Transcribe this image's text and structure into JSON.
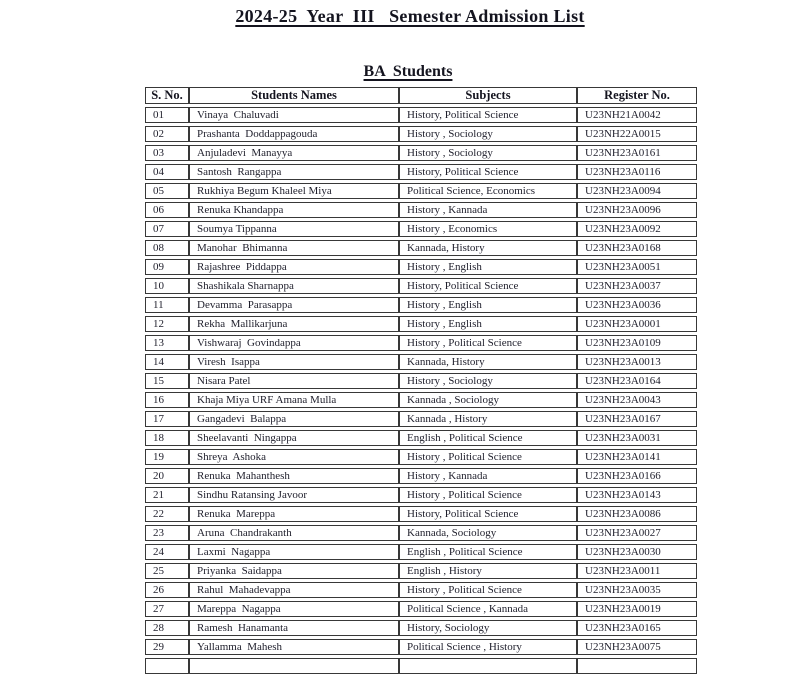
{
  "page": {
    "title": "2024-25  Year  III   Semester Admission List",
    "section_heading": "BA  Students"
  },
  "table": {
    "headers": [
      "S. No.",
      "Students Names",
      "Subjects",
      "Register No."
    ],
    "rows": [
      {
        "sno": "01",
        "name": "Vinaya  Chaluvadi",
        "subjects": "History, Political Science",
        "register": "U23NH21A0042"
      },
      {
        "sno": "02",
        "name": "Prashanta  Doddappagouda",
        "subjects": "History , Sociology",
        "register": "U23NH22A0015"
      },
      {
        "sno": "03",
        "name": "Anjuladevi  Manayya",
        "subjects": "History , Sociology",
        "register": "U23NH23A0161"
      },
      {
        "sno": "04",
        "name": "Santosh  Rangappa",
        "subjects": "History, Political Science",
        "register": "U23NH23A0116"
      },
      {
        "sno": "05",
        "name": "Rukhiya Begum Khaleel Miya",
        "subjects": "Political Science, Economics",
        "register": "U23NH23A0094"
      },
      {
        "sno": "06",
        "name": "Renuka Khandappa",
        "subjects": "History , Kannada",
        "register": "U23NH23A0096"
      },
      {
        "sno": "07",
        "name": "Soumya Tippanna",
        "subjects": "History , Economics",
        "register": "U23NH23A0092"
      },
      {
        "sno": "08",
        "name": "Manohar  Bhimanna",
        "subjects": "Kannada, History",
        "register": "U23NH23A0168"
      },
      {
        "sno": "09",
        "name": "Rajashree  Piddappa",
        "subjects": "History , English",
        "register": "U23NH23A0051"
      },
      {
        "sno": "10",
        "name": "Shashikala Sharnappa",
        "subjects": "History, Political Science",
        "register": "U23NH23A0037"
      },
      {
        "sno": "11",
        "name": "Devamma  Parasappa",
        "subjects": "History , English",
        "register": "U23NH23A0036"
      },
      {
        "sno": "12",
        "name": "Rekha  Mallikarjuna",
        "subjects": "History , English",
        "register": "U23NH23A0001"
      },
      {
        "sno": "13",
        "name": "Vishwaraj  Govindappa",
        "subjects": "History , Political Science",
        "register": "U23NH23A0109"
      },
      {
        "sno": "14",
        "name": "Viresh  Isappa",
        "subjects": "Kannada, History",
        "register": "U23NH23A0013"
      },
      {
        "sno": "15",
        "name": "Nisara Patel",
        "subjects": "History , Sociology",
        "register": "U23NH23A0164"
      },
      {
        "sno": "16",
        "name": "Khaja Miya URF Amana Mulla",
        "subjects": "Kannada , Sociology",
        "register": "U23NH23A0043"
      },
      {
        "sno": "17",
        "name": "Gangadevi  Balappa",
        "subjects": "Kannada , History",
        "register": "U23NH23A0167"
      },
      {
        "sno": "18",
        "name": "Sheelavanti  Ningappa",
        "subjects": "English , Political Science",
        "register": "U23NH23A0031"
      },
      {
        "sno": "19",
        "name": "Shreya  Ashoka",
        "subjects": "History , Political Science",
        "register": "U23NH23A0141"
      },
      {
        "sno": "20",
        "name": "Renuka  Mahanthesh",
        "subjects": "History , Kannada",
        "register": "U23NH23A0166"
      },
      {
        "sno": "21",
        "name": "Sindhu Ratansing Javoor",
        "subjects": "History , Political Science",
        "register": "U23NH23A0143"
      },
      {
        "sno": "22",
        "name": "Renuka  Mareppa",
        "subjects": "History, Political Science",
        "register": "U23NH23A0086"
      },
      {
        "sno": "23",
        "name": "Aruna  Chandrakanth",
        "subjects": "Kannada, Sociology",
        "register": "U23NH23A0027"
      },
      {
        "sno": "24",
        "name": "Laxmi  Nagappa",
        "subjects": "English , Political Science",
        "register": "U23NH23A0030"
      },
      {
        "sno": "25",
        "name": "Priyanka  Saidappa",
        "subjects": "English , History",
        "register": "U23NH23A0011"
      },
      {
        "sno": "26",
        "name": "Rahul  Mahadevappa",
        "subjects": "History , Political Science",
        "register": "U23NH23A0035"
      },
      {
        "sno": "27",
        "name": "Mareppa  Nagappa",
        "subjects": "Political Science , Kannada",
        "register": "U23NH23A0019"
      },
      {
        "sno": "28",
        "name": "Ramesh  Hanamanta",
        "subjects": "History, Sociology",
        "register": "U23NH23A0165"
      },
      {
        "sno": "29",
        "name": "Yallamma  Mahesh",
        "subjects": "Political Science , History",
        "register": "U23NH23A0075"
      }
    ]
  },
  "colors": {
    "text": "#1e1e2b",
    "heading_text": "#14141f",
    "border": "#383838",
    "background": "#ffffff"
  }
}
